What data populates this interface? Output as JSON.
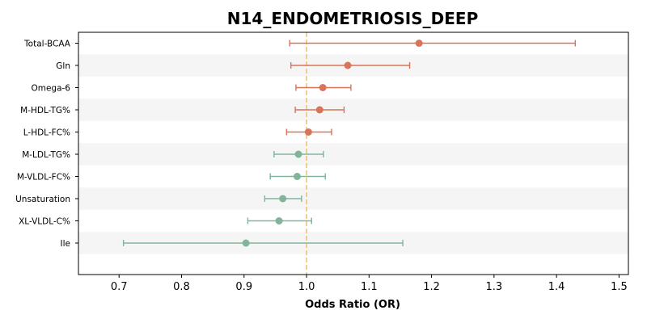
{
  "chart_data": {
    "type": "forest",
    "title": "N14_ENDOMETRIOSIS_DEEP",
    "xlabel": "Odds Ratio (OR)",
    "xlim": [
      0.635,
      1.515
    ],
    "xticks": [
      0.7,
      0.8,
      0.9,
      1.0,
      1.1,
      1.2,
      1.3,
      1.4,
      1.5
    ],
    "xtick_labels": [
      "0.7",
      "0.8",
      "0.9",
      "1.0",
      "1.1",
      "1.2",
      "1.3",
      "1.4",
      "1.5"
    ],
    "reference_line": 1.0,
    "reference_color": "#f5c26b",
    "positive_color": "#d9745a",
    "negative_color": "#82b39b",
    "band_color": "#f5f5f5",
    "rows": [
      {
        "label": "Total-BCAA",
        "or": 1.18,
        "lower": 0.973,
        "upper": 1.43
      },
      {
        "label": "Gln",
        "or": 1.066,
        "lower": 0.975,
        "upper": 1.165
      },
      {
        "label": "Omega-6",
        "or": 1.026,
        "lower": 0.983,
        "upper": 1.071
      },
      {
        "label": "M-HDL-TG%",
        "or": 1.021,
        "lower": 0.982,
        "upper": 1.06
      },
      {
        "label": "L-HDL-FC%",
        "or": 1.003,
        "lower": 0.968,
        "upper": 1.04
      },
      {
        "label": "M-LDL-TG%",
        "or": 0.987,
        "lower": 0.948,
        "upper": 1.027
      },
      {
        "label": "M-VLDL-FC%",
        "or": 0.985,
        "lower": 0.942,
        "upper": 1.03
      },
      {
        "label": "Unsaturation",
        "or": 0.962,
        "lower": 0.933,
        "upper": 0.992
      },
      {
        "label": "XL-VLDL-C%",
        "or": 0.956,
        "lower": 0.906,
        "upper": 1.008
      },
      {
        "label": "Ile",
        "or": 0.903,
        "lower": 0.707,
        "upper": 1.154
      }
    ]
  }
}
